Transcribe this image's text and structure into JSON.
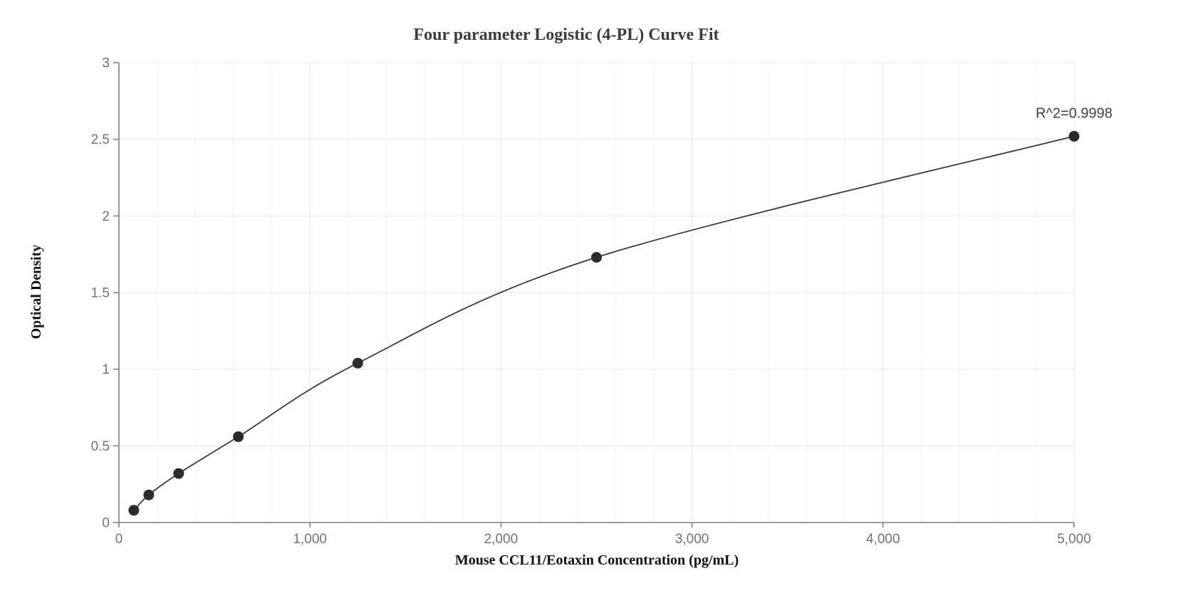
{
  "chart_data": {
    "type": "scatter",
    "title": "Four parameter Logistic (4-PL) Curve Fit",
    "xlabel": "Mouse CCL11/Eotaxin Concentration (pg/mL)",
    "ylabel": "Optical Density",
    "annotation": "R^2=0.9998",
    "series": [
      {
        "name": "standard-curve-points",
        "x": [
          78.1,
          156.3,
          312.5,
          625,
          1250,
          2500,
          5000
        ],
        "y": [
          0.08,
          0.18,
          0.32,
          0.56,
          1.04,
          1.73,
          2.52
        ]
      }
    ],
    "fit_line": "smooth 4-PL fit curve passing through all data points, from first point to last point",
    "xlim": [
      0,
      5000
    ],
    "ylim": [
      0,
      3
    ],
    "x_ticks": [
      0,
      1000,
      2000,
      3000,
      4000,
      5000
    ],
    "x_tick_labels": [
      "0",
      "1,000",
      "2,000",
      "3,000",
      "4,000",
      "5,000"
    ],
    "y_ticks": [
      0,
      0.5,
      1,
      1.5,
      2,
      2.5,
      3
    ],
    "y_tick_labels": [
      "0",
      "0.5",
      "1",
      "1.5",
      "2",
      "2.5",
      "3"
    ],
    "x_minor_grid_step": 200,
    "grid": "on",
    "legend_position": "none",
    "colors": {
      "background": "#ffffff",
      "point": "#2b2b2b",
      "line": "#3a3a3a",
      "grid_minor": "#eef1f8",
      "grid_major": "#e2e7f2",
      "axis": "#8b8e94",
      "tick_label": "#6f7378",
      "title": "#3c3c3c",
      "axis_title": "#101010",
      "annotation": "#3f4245"
    }
  }
}
